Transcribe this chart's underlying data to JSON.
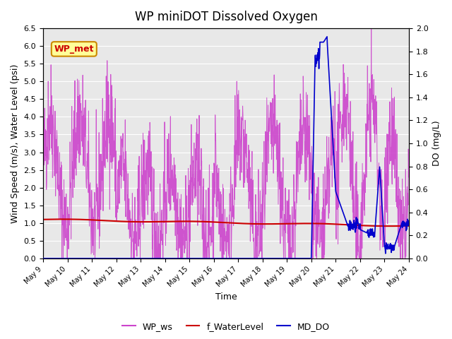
{
  "title": "WP miniDOT Dissolved Oxygen",
  "xlabel": "Time",
  "ylabel_left": "Wind Speed (m/s), Water Level (psi)",
  "ylabel_right": "DO (mg/L)",
  "ylim_left": [
    0.0,
    6.5
  ],
  "ylim_right": [
    0.0,
    2.0
  ],
  "yticks_left": [
    0.0,
    0.5,
    1.0,
    1.5,
    2.0,
    2.5,
    3.0,
    3.5,
    4.0,
    4.5,
    5.0,
    5.5,
    6.0,
    6.5
  ],
  "yticks_right": [
    0.0,
    0.2,
    0.4,
    0.6,
    0.8,
    1.0,
    1.2,
    1.4,
    1.6,
    1.8,
    2.0
  ],
  "xtick_labels": [
    "May 9",
    "May 10",
    "May 11",
    "May 12",
    "May 13",
    "May 14",
    "May 15",
    "May 16",
    "May 17",
    "May 18",
    "May 19",
    "May 20",
    "May 21",
    "May 22",
    "May 23",
    "May 24"
  ],
  "wp_ws_color": "#CC44CC",
  "f_water_level_color": "#CC0000",
  "md_do_color": "#0000CC",
  "background_color": "#E8E8E8",
  "legend_box_color": "#FFFF99",
  "legend_box_border": "#CC8800",
  "annotation_text": "WP_met",
  "annotation_color": "#CC0000",
  "grid_color": "#FFFFFF",
  "n_days": 15,
  "seed": 42
}
